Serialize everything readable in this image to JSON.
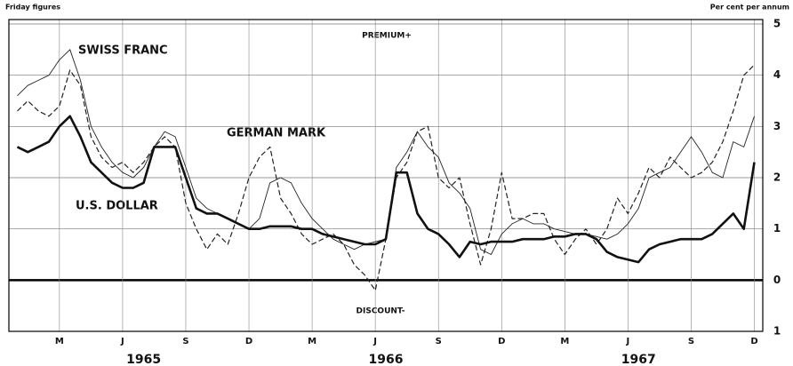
{
  "chart_data": {
    "type": "line",
    "subtitle": "Friday figures",
    "y_axis_label": "Per cent per annum",
    "annotations": {
      "swiss": "SWISS FRANC",
      "german": "GERMAN MARK",
      "us": "U.S. DOLLAR",
      "premium": "PREMIUM+",
      "discount": "DISCOUNT-"
    },
    "x": [
      0,
      0.5,
      1,
      1.5,
      2,
      2.5,
      3,
      3.5,
      4,
      4.5,
      5,
      5.5,
      6,
      6.5,
      7,
      7.5,
      8,
      8.5,
      9,
      9.5,
      10,
      10.5,
      11,
      11.5,
      12,
      12.5,
      13,
      13.5,
      14,
      14.5,
      15,
      15.5,
      16,
      16.5,
      17,
      17.5,
      18,
      18.5,
      19,
      19.5,
      20,
      20.5,
      21,
      21.5,
      22,
      22.5,
      23,
      23.5,
      24,
      24.5,
      25,
      25.5,
      26,
      26.5,
      27,
      27.5,
      28,
      28.5,
      29,
      29.5,
      30,
      30.5,
      31,
      31.5,
      32,
      32.5,
      33,
      33.5,
      34,
      34.5,
      35
    ],
    "xlim": [
      -0.4,
      35.4
    ],
    "xticks": [
      {
        "value": 2,
        "label": "M"
      },
      {
        "value": 5,
        "label": "J"
      },
      {
        "value": 8,
        "label": "S"
      },
      {
        "value": 11,
        "label": "D"
      },
      {
        "value": 14,
        "label": "M"
      },
      {
        "value": 17,
        "label": "J"
      },
      {
        "value": 20,
        "label": "S"
      },
      {
        "value": 23,
        "label": "D"
      },
      {
        "value": 26,
        "label": "M"
      },
      {
        "value": 29,
        "label": "J"
      },
      {
        "value": 32,
        "label": "S"
      },
      {
        "value": 35,
        "label": "D"
      }
    ],
    "year_labels": [
      {
        "value": 6,
        "label": "1965"
      },
      {
        "value": 17.5,
        "label": "1966"
      },
      {
        "value": 29.5,
        "label": "1967"
      }
    ],
    "ylim": [
      -1,
      5
    ],
    "yticks": [
      {
        "value": -1,
        "label": "1"
      },
      0,
      1,
      2,
      3,
      4,
      5
    ],
    "grid": true,
    "series": [
      {
        "name": "SWISS FRANC",
        "color": "#222",
        "line_style": "thin",
        "values": [
          3.6,
          3.8,
          3.9,
          4.0,
          4.3,
          4.5,
          3.9,
          3.0,
          2.6,
          2.3,
          2.1,
          2.0,
          2.2,
          2.6,
          2.9,
          2.8,
          2.2,
          1.6,
          1.4,
          1.3,
          1.2,
          1.1,
          1.0,
          1.2,
          1.9,
          2.0,
          1.9,
          1.5,
          1.2,
          1.0,
          0.8,
          0.7,
          0.6,
          0.7,
          0.75,
          0.8,
          2.2,
          2.5,
          2.9,
          2.6,
          2.4,
          1.9,
          1.7,
          1.4,
          0.6,
          0.5,
          0.9,
          1.1,
          1.2,
          1.1,
          1.1,
          1.0,
          0.95,
          0.9,
          0.9,
          0.85,
          0.8,
          0.9,
          1.1,
          1.4,
          2.0,
          2.1,
          2.2,
          2.5,
          2.8,
          2.5,
          2.1,
          2.0,
          2.7,
          2.6,
          3.2
        ]
      },
      {
        "name": "GERMAN MARK",
        "color": "#222",
        "line_style": "dashed",
        "values": [
          3.3,
          3.5,
          3.3,
          3.2,
          3.4,
          4.1,
          3.8,
          2.8,
          2.4,
          2.2,
          2.3,
          2.1,
          2.3,
          2.6,
          2.8,
          2.6,
          1.5,
          1.0,
          0.6,
          0.9,
          0.7,
          1.3,
          2.0,
          2.4,
          2.6,
          1.6,
          1.3,
          0.9,
          0.7,
          0.8,
          0.9,
          0.7,
          0.3,
          0.1,
          -0.2,
          0.8,
          2.0,
          2.3,
          2.9,
          3.0,
          2.0,
          1.8,
          2.0,
          1.1,
          0.3,
          1.0,
          2.1,
          1.2,
          1.2,
          1.3,
          1.3,
          0.8,
          0.5,
          0.8,
          1.0,
          0.7,
          1.0,
          1.6,
          1.3,
          1.7,
          2.2,
          2.0,
          2.4,
          2.2,
          2.0,
          2.1,
          2.3,
          2.7,
          3.3,
          4.0,
          4.2
        ]
      },
      {
        "name": "U.S. DOLLAR",
        "color": "#111",
        "line_style": "thick",
        "values": [
          2.6,
          2.5,
          2.6,
          2.7,
          3.0,
          3.2,
          2.8,
          2.3,
          2.1,
          1.9,
          1.8,
          1.8,
          1.9,
          2.6,
          2.6,
          2.6,
          2.0,
          1.4,
          1.3,
          1.3,
          1.2,
          1.1,
          1.0,
          1.0,
          1.05,
          1.05,
          1.05,
          1.0,
          1.0,
          0.9,
          0.85,
          0.8,
          0.75,
          0.7,
          0.7,
          0.8,
          2.1,
          2.1,
          1.3,
          1.0,
          0.9,
          0.7,
          0.45,
          0.75,
          0.7,
          0.75,
          0.75,
          0.75,
          0.8,
          0.8,
          0.8,
          0.85,
          0.85,
          0.9,
          0.9,
          0.8,
          0.55,
          0.45,
          0.4,
          0.35,
          0.6,
          0.7,
          0.75,
          0.8,
          0.8,
          0.8,
          0.9,
          1.1,
          1.3,
          1.0,
          2.3
        ]
      }
    ]
  }
}
